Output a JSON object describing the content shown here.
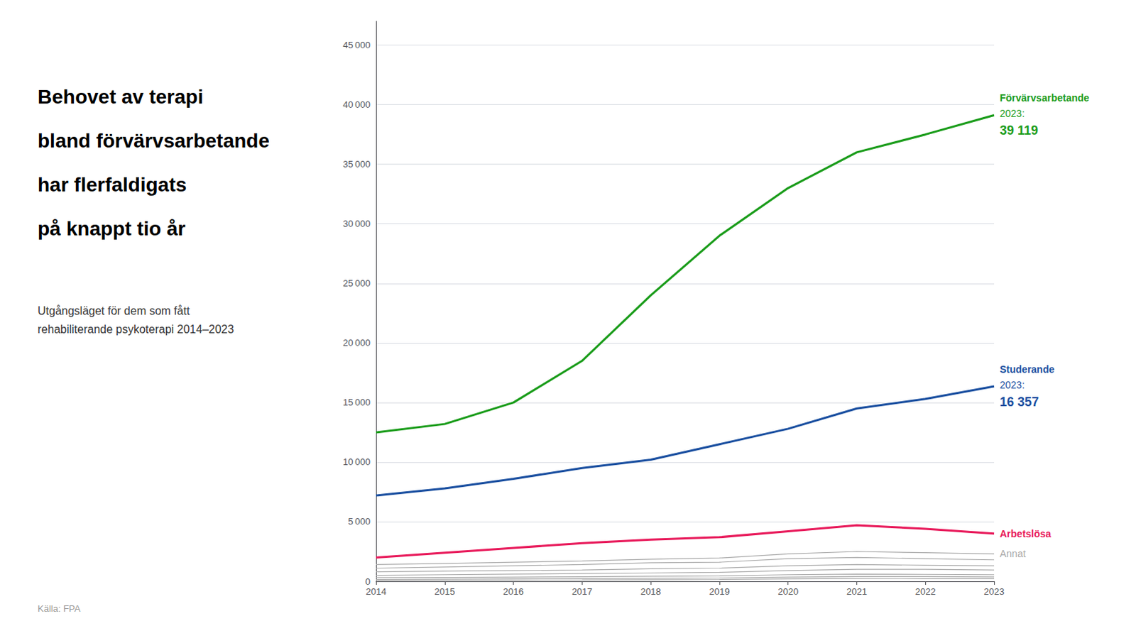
{
  "chart_data": {
    "type": "line",
    "title": "Behovet av terapi\nbland förvärvsarbetande\nhar flerfaldigats\npå knappt tio år",
    "subtitle": "Utgångsläget för dem som fått\nrehabiliterande psykoterapi 2014–2023",
    "source": "Källa: FPA",
    "x": [
      2014,
      2015,
      2016,
      2017,
      2018,
      2019,
      2020,
      2021,
      2022,
      2023
    ],
    "xlim": [
      2014,
      2023
    ],
    "xticks": [
      2014,
      2015,
      2016,
      2017,
      2018,
      2019,
      2020,
      2021,
      2022,
      2023
    ],
    "ylim": [
      0,
      47000
    ],
    "yticks": [
      0,
      {
        "value": 5000,
        "label": "5 000"
      },
      {
        "value": 10000,
        "label": "10 000"
      },
      {
        "value": 15000,
        "label": "15 000"
      },
      {
        "value": 20000,
        "label": "20 000"
      },
      {
        "value": 25000,
        "label": "25 000"
      },
      {
        "value": 30000,
        "label": "30 000"
      },
      {
        "value": 35000,
        "label": "35 000"
      },
      {
        "value": 40000,
        "label": "40 000"
      },
      {
        "value": 45000,
        "label": "45 000"
      }
    ],
    "grid": true,
    "series": [
      {
        "name": "Annat",
        "color": "#aaaaaa",
        "values": [
          1400,
          1500,
          1600,
          1700,
          1850,
          1950,
          2300,
          2500,
          2400,
          2300
        ]
      },
      {
        "name": "Annat",
        "color": "#aaaaaa",
        "values": [
          1100,
          1200,
          1300,
          1400,
          1550,
          1600,
          1900,
          2000,
          1900,
          1800
        ]
      },
      {
        "name": "Annat",
        "color": "#aaaaaa",
        "values": [
          800,
          850,
          900,
          950,
          1050,
          1100,
          1300,
          1400,
          1350,
          1300
        ]
      },
      {
        "name": "Annat",
        "color": "#aaaaaa",
        "values": [
          500,
          550,
          600,
          650,
          700,
          750,
          900,
          1000,
          1000,
          950
        ]
      },
      {
        "name": "Annat",
        "color": "#aaaaaa",
        "values": [
          300,
          320,
          350,
          380,
          420,
          450,
          550,
          600,
          580,
          550
        ]
      },
      {
        "name": "Annat",
        "color": "#aaaaaa",
        "values": [
          150,
          170,
          200,
          220,
          250,
          280,
          350,
          400,
          390,
          370
        ]
      },
      {
        "name": "Annat",
        "color": "#aaaaaa",
        "values": [
          80,
          90,
          100,
          110,
          130,
          150,
          200,
          230,
          220,
          210
        ]
      },
      {
        "name": "Förvärvsarbetande",
        "color": "#1a9c1a",
        "values": [
          12500,
          13200,
          15000,
          18500,
          24000,
          29000,
          33000,
          36000,
          37500,
          39119
        ]
      },
      {
        "name": "Studerande",
        "color": "#1a4fa0",
        "values": [
          7200,
          7800,
          8600,
          9500,
          10200,
          11500,
          12800,
          14500,
          15300,
          16357
        ]
      },
      {
        "name": "Arbetslösa",
        "color": "#e8195a",
        "values": [
          2000,
          2400,
          2800,
          3200,
          3500,
          3700,
          4200,
          4700,
          4400,
          4000
        ]
      }
    ],
    "annotations": [
      {
        "series": "Förvärvsarbetande",
        "lines": [
          "Förvärvsarbetande",
          "2023:",
          "39 119"
        ]
      },
      {
        "series": "Studerande",
        "lines": [
          "Studerande",
          "2023:",
          "16 357"
        ]
      },
      {
        "series": "Arbetslösa",
        "lines": [
          "Arbetslösa"
        ]
      },
      {
        "series": "Annat",
        "lines": [
          "Annat"
        ]
      }
    ]
  }
}
